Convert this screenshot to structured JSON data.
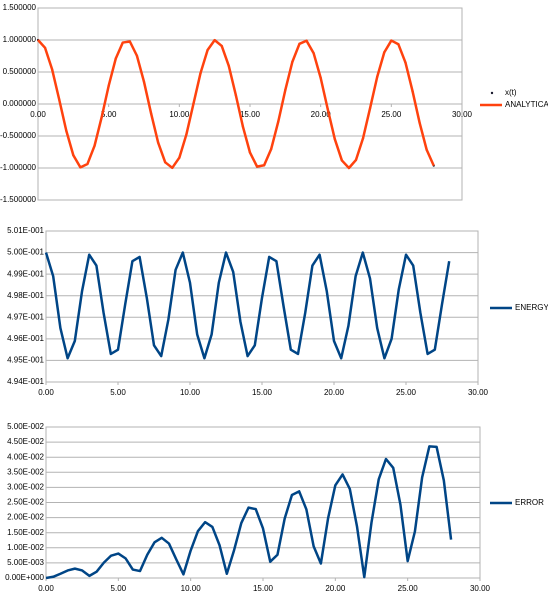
{
  "chart_data": [
    {
      "type": "line",
      "x": [
        0,
        0.5,
        1,
        1.5,
        2,
        2.5,
        3,
        3.5,
        4,
        4.5,
        5,
        5.5,
        6,
        6.5,
        7,
        7.5,
        8,
        8.5,
        9,
        9.5,
        10,
        10.5,
        11,
        11.5,
        12,
        12.5,
        13,
        13.5,
        14,
        14.5,
        15,
        15.5,
        16,
        16.5,
        17,
        17.5,
        18,
        18.5,
        19,
        19.5,
        20,
        20.5,
        21,
        21.5,
        22,
        22.5,
        23,
        23.5,
        24,
        24.5,
        25,
        25.5,
        26,
        26.5,
        27,
        27.5,
        28
      ],
      "series": [
        {
          "name": "x(t)",
          "color": "#1a1a2e",
          "mode": "markers",
          "values": [
            1,
            0.8776,
            0.5403,
            0.0707,
            -0.4161,
            -0.8011,
            -0.99,
            -0.9365,
            -0.6536,
            -0.2108,
            0.2837,
            0.7087,
            0.9602,
            0.9766,
            0.7539,
            0.3466,
            -0.1455,
            -0.602,
            -0.9111,
            -0.9972,
            -0.8391,
            -0.4755,
            0.0044,
            0.4833,
            0.8439,
            0.9978,
            0.9074,
            0.5949,
            0.1367,
            -0.3549,
            -0.7597,
            -0.9785,
            -0.9577,
            -0.7025,
            -0.2752,
            0.2194,
            0.6603,
            0.9407,
            0.9887,
            0.7958,
            0.4081,
            -0.0796,
            -0.5477,
            -0.8818,
            -1,
            -0.8733,
            -0.5328,
            -0.0618,
            0.4242,
            0.8064,
            0.9912,
            0.9333,
            0.6469,
            0.2021,
            -0.2921,
            -0.7149,
            -0.9626
          ]
        },
        {
          "name": "ANALYTICAL",
          "color": "#ff420e",
          "mode": "lines",
          "values": [
            1,
            0.8776,
            0.5403,
            0.0707,
            -0.4161,
            -0.8011,
            -0.99,
            -0.9365,
            -0.6536,
            -0.2108,
            0.2837,
            0.7087,
            0.9602,
            0.9766,
            0.7539,
            0.3466,
            -0.1455,
            -0.602,
            -0.9111,
            -0.9972,
            -0.8391,
            -0.4755,
            0.0044,
            0.4833,
            0.8439,
            0.9978,
            0.9074,
            0.5949,
            0.1367,
            -0.3549,
            -0.7597,
            -0.9785,
            -0.9577,
            -0.7025,
            -0.2752,
            0.2194,
            0.6603,
            0.9407,
            0.9887,
            0.7958,
            0.4081,
            -0.0796,
            -0.5477,
            -0.8818,
            -1,
            -0.8733,
            -0.5328,
            -0.0618,
            0.4242,
            0.8064,
            0.9912,
            0.9333,
            0.6469,
            0.2021,
            -0.2921,
            -0.7149,
            -0.9626
          ]
        }
      ],
      "xlim": [
        0,
        30
      ],
      "xticks": [
        {
          "value": 0,
          "label": "0.00"
        },
        {
          "value": 5,
          "label": "5.00"
        },
        {
          "value": 10,
          "label": "10.00"
        },
        {
          "value": 15,
          "label": "15.00"
        },
        {
          "value": 20,
          "label": "20.00"
        },
        {
          "value": 25,
          "label": "25.00"
        },
        {
          "value": 30,
          "label": "30.00"
        }
      ],
      "ylim": [
        -1.5,
        1.5
      ],
      "yticks": [
        {
          "value": -1.5,
          "label": "-1.500000"
        },
        {
          "value": -1,
          "label": "-1.000000"
        },
        {
          "value": -0.5,
          "label": "-0.500000"
        },
        {
          "value": 0,
          "label": "0.000000"
        },
        {
          "value": 0.5,
          "label": "0.500000"
        },
        {
          "value": 1,
          "label": "1.000000"
        },
        {
          "value": 1.5,
          "label": "1.500000"
        }
      ],
      "grid": true
    },
    {
      "type": "line",
      "x": [
        0,
        0.5,
        1,
        1.5,
        2,
        2.5,
        3,
        3.5,
        4,
        4.5,
        5,
        5.5,
        6,
        6.5,
        7,
        7.5,
        8,
        8.5,
        9,
        9.5,
        10,
        10.5,
        11,
        11.5,
        12,
        12.5,
        13,
        13.5,
        14,
        14.5,
        15,
        15.5,
        16,
        16.5,
        17,
        17.5,
        18,
        18.5,
        19,
        19.5,
        20,
        20.5,
        21,
        21.5,
        22,
        22.5,
        23,
        23.5,
        24,
        24.5,
        25,
        25.5,
        26,
        26.5,
        27,
        27.5,
        28
      ],
      "series": [
        {
          "name": "ENERGY",
          "color": "#004586",
          "mode": "lines",
          "values": [
            0.5,
            0.4989,
            0.4965,
            0.4951,
            0.4959,
            0.4982,
            0.4999,
            0.4994,
            0.4972,
            0.4953,
            0.4955,
            0.4976,
            0.4996,
            0.4998,
            0.4979,
            0.4957,
            0.4952,
            0.4969,
            0.4992,
            0.5,
            0.4986,
            0.4962,
            0.4951,
            0.4962,
            0.4986,
            0.5,
            0.4991,
            0.4968,
            0.4952,
            0.4957,
            0.4979,
            0.4998,
            0.4996,
            0.4975,
            0.4955,
            0.4953,
            0.4972,
            0.4994,
            0.4999,
            0.4982,
            0.4959,
            0.4951,
            0.4966,
            0.4989,
            0.5,
            0.4988,
            0.4965,
            0.4951,
            0.496,
            0.4983,
            0.4999,
            0.4994,
            0.4972,
            0.4953,
            0.4955,
            0.4976,
            0.4996
          ]
        }
      ],
      "xlim": [
        0,
        30
      ],
      "xticks": [
        {
          "value": 0,
          "label": "0.00"
        },
        {
          "value": 5,
          "label": "5.00"
        },
        {
          "value": 10,
          "label": "10.00"
        },
        {
          "value": 15,
          "label": "15.00"
        },
        {
          "value": 20,
          "label": "20.00"
        },
        {
          "value": 25,
          "label": "25.00"
        },
        {
          "value": 30,
          "label": "30.00"
        }
      ],
      "ylim": [
        0.494,
        0.501
      ],
      "yticks": [
        {
          "value": 0.494,
          "label": "4.94E-001"
        },
        {
          "value": 0.495,
          "label": "4.95E-001"
        },
        {
          "value": 0.496,
          "label": "4.96E-001"
        },
        {
          "value": 0.497,
          "label": "4.97E-001"
        },
        {
          "value": 0.498,
          "label": "4.98E-001"
        },
        {
          "value": 0.499,
          "label": "4.99E-001"
        },
        {
          "value": 0.5,
          "label": "5.00E-001"
        },
        {
          "value": 0.501,
          "label": "5.01E-001"
        }
      ],
      "grid": true
    },
    {
      "type": "line",
      "x": [
        0,
        0.5,
        1,
        1.5,
        2,
        2.5,
        3,
        3.5,
        4,
        4.5,
        5,
        5.5,
        6,
        6.5,
        7,
        7.5,
        8,
        8.5,
        9,
        9.5,
        10,
        10.5,
        11,
        11.5,
        12,
        12.5,
        13,
        13.5,
        14,
        14.5,
        15,
        15.5,
        16,
        16.5,
        17,
        17.5,
        18,
        18.5,
        19,
        19.5,
        20,
        20.5,
        21,
        21.5,
        22,
        22.5,
        23,
        23.5,
        24,
        24.5,
        25,
        25.5,
        26,
        26.5,
        27,
        27.5,
        28
      ],
      "series": [
        {
          "name": "ERROR",
          "color": "#004586",
          "mode": "lines",
          "values": [
            0,
            0.0004,
            0.0014,
            0.0025,
            0.0031,
            0.0025,
            0.0007,
            0.0021,
            0.0051,
            0.0074,
            0.0081,
            0.0065,
            0.0028,
            0.0023,
            0.0077,
            0.0118,
            0.0133,
            0.0114,
            0.0062,
            0.0012,
            0.0091,
            0.0155,
            0.0185,
            0.0169,
            0.0108,
            0.0014,
            0.0092,
            0.0182,
            0.0233,
            0.0228,
            0.0164,
            0.0054,
            0.0077,
            0.0197,
            0.0275,
            0.0287,
            0.0227,
            0.0105,
            0.0048,
            0.0198,
            0.0307,
            0.0343,
            0.0295,
            0.017,
            0.0003,
            0.0184,
            0.0327,
            0.0394,
            0.0365,
            0.0243,
            0.0056,
            0.0154,
            0.0333,
            0.0436,
            0.0434,
            0.0323,
            0.0127
          ]
        }
      ],
      "xlim": [
        0,
        30
      ],
      "xticks": [
        {
          "value": 0,
          "label": "0.00"
        },
        {
          "value": 5,
          "label": "5.00"
        },
        {
          "value": 10,
          "label": "10.00"
        },
        {
          "value": 15,
          "label": "15.00"
        },
        {
          "value": 20,
          "label": "20.00"
        },
        {
          "value": 25,
          "label": "25.00"
        },
        {
          "value": 30,
          "label": "30.00"
        }
      ],
      "ylim": [
        0,
        0.05
      ],
      "yticks": [
        {
          "value": 0,
          "label": "0.00E+000"
        },
        {
          "value": 0.005,
          "label": "5.00E-003"
        },
        {
          "value": 0.01,
          "label": "1.00E-002"
        },
        {
          "value": 0.015,
          "label": "1.50E-002"
        },
        {
          "value": 0.02,
          "label": "2.00E-002"
        },
        {
          "value": 0.025,
          "label": "2.50E-002"
        },
        {
          "value": 0.03,
          "label": "3.00E-002"
        },
        {
          "value": 0.035,
          "label": "3.50E-002"
        },
        {
          "value": 0.04,
          "label": "4.00E-002"
        },
        {
          "value": 0.045,
          "label": "4.50E-002"
        },
        {
          "value": 0.05,
          "label": "5.00E-002"
        }
      ],
      "grid": true
    }
  ]
}
